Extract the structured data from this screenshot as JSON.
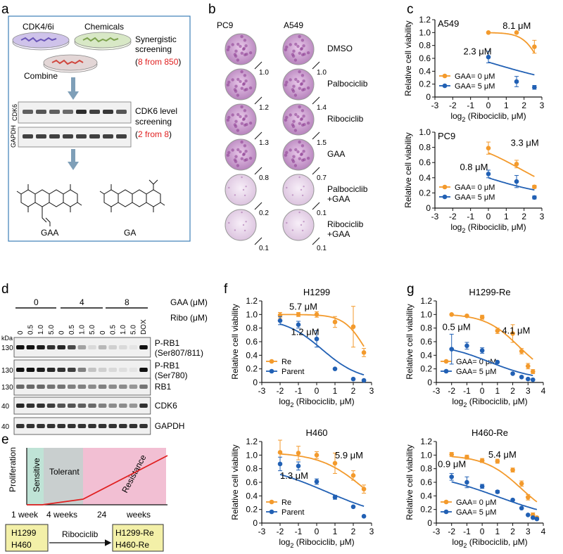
{
  "panel_letters": {
    "a": "a",
    "b": "b",
    "c": "c",
    "d": "d",
    "e": "e",
    "f": "f",
    "g": "g"
  },
  "colors": {
    "orange": "#f39a2c",
    "blue": "#2160b4",
    "panel_border": "#3c7fb7",
    "arrow": "#7f9fb8",
    "red": "#e02020",
    "sensitive": "#bfe3d6",
    "tolerant": "#c9cfcf",
    "resistance": "#f2bfd3",
    "yellow_box": "#f3f0a8"
  },
  "panel_a": {
    "dish1": "CDK4/6i",
    "dish2": "Chemicals",
    "combine": "Combine",
    "screen_title": "Synergistic",
    "screen_title2": "screening",
    "screen_count_open": "(",
    "screen_count": "8 from 850",
    "screen_count_close": ")",
    "blot_rows": [
      "CDK6",
      "GAPDH"
    ],
    "level_title": "CDK6 level",
    "level_title2": "screening",
    "level_count_open": "(",
    "level_count": "2 from 8",
    "level_count_close": ")",
    "compounds": [
      "GAA",
      "GA"
    ]
  },
  "panel_b": {
    "columns": [
      "PC9",
      "A549"
    ],
    "rows": [
      {
        "label": "DMSO",
        "pc9": "1.0",
        "a549": "1.0"
      },
      {
        "label": "Palbociclib",
        "pc9": "1.2",
        "a549": "1.4"
      },
      {
        "label": "Ribociclib",
        "pc9": "1.3",
        "a549": "1.5"
      },
      {
        "label": "GAA",
        "pc9": "0.8",
        "a549": "0.7"
      },
      {
        "label": "Palbociclib",
        "label2": "+GAA",
        "pc9": "0.2",
        "a549": "0.1"
      },
      {
        "label": "Ribociclib",
        "label2": "+GAA",
        "pc9": "0.1",
        "a549": "0.1"
      }
    ]
  },
  "panel_d": {
    "gaa_label": "GAA (μM)",
    "ribo_label": "Ribo (μM)",
    "gaa_groups": [
      "0",
      "4",
      "8"
    ],
    "ribo_doses": [
      "0",
      "0.5",
      "1.0",
      "5.0",
      "0",
      "0.5",
      "1.0",
      "5.0",
      "0",
      "0.5",
      "1.0",
      "5.0"
    ],
    "dox": "DOX",
    "kda": "kDa",
    "bands": [
      {
        "kda": "130",
        "label": "P-RB1",
        "label2": "(Ser807/811)"
      },
      {
        "kda": "130",
        "label": "P-RB1",
        "label2": "(Ser780)"
      },
      {
        "kda": "130",
        "label": "RB1"
      },
      {
        "kda": "40",
        "label": "CDK6"
      },
      {
        "kda": "40",
        "label": "GAPDH"
      }
    ]
  },
  "panel_e": {
    "ylabel": "Proliferation",
    "phases": [
      "Sensitive",
      "Tolerant",
      "Resistance"
    ],
    "times": [
      "1 week",
      "4 weeks",
      "24",
      "weeks"
    ],
    "box_left": [
      "H1299",
      "H460"
    ],
    "arrow_label": "Ribociclib",
    "box_right": [
      "H1299-Re",
      "H460-Re"
    ]
  },
  "chart_data": [
    {
      "id": "c-A549",
      "type": "scatter",
      "title": "A549",
      "ylabel": "Relative cell viability",
      "xlabel_pre": "log",
      "xlabel_sub": "2",
      "xlabel_post": " (Ribociclib, μM)",
      "xlim": [
        -3,
        3
      ],
      "ylim": [
        0,
        1.2
      ],
      "xticks": [
        "-3",
        "-2",
        "-1",
        "0",
        "1",
        "2",
        "3"
      ],
      "yticks": [
        "0",
        "0.2",
        "0.4",
        "0.6",
        "0.8",
        "1.0",
        "1.2"
      ],
      "series": [
        {
          "name": "GAA= 0 μM",
          "color": "orange",
          "x": [
            0,
            1.58,
            2.58
          ],
          "y": [
            1.0,
            1.0,
            0.78
          ],
          "err": [
            0,
            0,
            0.1
          ],
          "curve": {
            "top": 1.0,
            "bottom": 0.0,
            "ic50": 2.95,
            "hill": 3
          }
        },
        {
          "name": "GAA= 5 μM",
          "color": "blue",
          "x": [
            0,
            1.58,
            2.58
          ],
          "y": [
            0.62,
            0.24,
            0.15
          ],
          "err": [
            0.09,
            0.08,
            0.03
          ],
          "curve": {
            "top": 0.95,
            "bottom": 0.1,
            "ic50": 0.2,
            "hill": 0.55
          }
        }
      ],
      "annotations": [
        {
          "text": "8.1 μM",
          "x": 0.8,
          "y": 1.06
        },
        {
          "text": "2.3 μM",
          "x": -1.4,
          "y": 0.66
        }
      ],
      "legend": "bottom-left"
    },
    {
      "id": "c-PC9",
      "type": "scatter",
      "title": "PC9",
      "ylabel": "Relative cell viability",
      "xlabel_pre": "log",
      "xlabel_sub": "2",
      "xlabel_post": " (Ribociclib, μM)",
      "xlim": [
        -3,
        3
      ],
      "ylim": [
        0,
        1.0
      ],
      "xticks": [
        "-3",
        "-2",
        "-1",
        "0",
        "1",
        "2",
        "3"
      ],
      "yticks": [
        "0",
        "0.2",
        "0.4",
        "0.6",
        "0.8",
        "1.0"
      ],
      "series": [
        {
          "name": "GAA= 0 μM",
          "color": "orange",
          "x": [
            0,
            1.58,
            2.58
          ],
          "y": [
            0.79,
            0.58,
            0.28
          ],
          "err": [
            0.08,
            0.05,
            0.02
          ],
          "curve": {
            "top": 0.93,
            "bottom": 0.1,
            "ic50": 1.8,
            "hill": 0.9
          }
        },
        {
          "name": "GAA= 5 μM",
          "color": "blue",
          "x": [
            0,
            1.58,
            2.58
          ],
          "y": [
            0.45,
            0.35,
            0.14
          ],
          "err": [
            0.05,
            0.08,
            0.02
          ],
          "curve": {
            "top": 0.72,
            "bottom": 0.12,
            "ic50": -0.3,
            "hill": 0.7
          }
        }
      ],
      "annotations": [
        {
          "text": "3.3 μM",
          "x": 1.25,
          "y": 0.82
        },
        {
          "text": "0.8 μM",
          "x": -1.6,
          "y": 0.5
        }
      ],
      "legend": "bottom-left"
    },
    {
      "id": "f-H1299",
      "type": "scatter",
      "title": "H1299",
      "ylabel": "Relative cell viability",
      "xlabel_pre": "log",
      "xlabel_sub": "2",
      "xlabel_post": " (Ribociclib, μM)",
      "xlim": [
        -3,
        3
      ],
      "ylim": [
        0,
        1.2
      ],
      "xticks": [
        "-3",
        "-2",
        "-1",
        "0",
        "1",
        "2",
        "3"
      ],
      "yticks": [
        "0",
        "0.2",
        "0.4",
        "0.6",
        "0.8",
        "1.0",
        "1.2"
      ],
      "series": [
        {
          "name": "Re",
          "color": "orange",
          "x": [
            -2,
            -1,
            0,
            1,
            2,
            2.58
          ],
          "y": [
            0.99,
            1.0,
            1.0,
            0.89,
            0.82,
            0.44
          ],
          "err": [
            0.04,
            0.03,
            0.04,
            0.08,
            0.3,
            0.06
          ],
          "curve": {
            "top": 1.0,
            "bottom": 0.0,
            "ic50": 2.65,
            "hill": 2.5
          }
        },
        {
          "name": "Parent",
          "color": "blue",
          "x": [
            -2,
            -1,
            0,
            1,
            2,
            2.58
          ],
          "y": [
            0.91,
            0.85,
            0.64,
            0.2,
            0.05,
            0.03
          ],
          "err": [
            0.06,
            0.05,
            0.12,
            0,
            0,
            0
          ],
          "curve": {
            "top": 0.95,
            "bottom": 0.02,
            "ic50": 0.3,
            "hill": 1.4
          }
        }
      ],
      "annotations": [
        {
          "text": "5.7 μM",
          "x": -1.5,
          "y": 1.07
        },
        {
          "text": "1.2 μM",
          "x": -1.4,
          "y": 0.7
        }
      ],
      "legend": "bottom-left"
    },
    {
      "id": "g-H1299-Re",
      "type": "scatter",
      "title": "H1299-Re",
      "ylabel": "Relative cell viability",
      "xlabel_pre": "log",
      "xlabel_sub": "2",
      "xlabel_post": " (Ribociclib, μM)",
      "xlim": [
        -3,
        4
      ],
      "ylim": [
        0,
        1.2
      ],
      "xticks": [
        "-3",
        "-2",
        "-1",
        "0",
        "1",
        "2",
        "3",
        "4"
      ],
      "yticks": [
        "0",
        "0.2",
        "0.4",
        "0.6",
        "0.8",
        "1.0",
        "1.2"
      ],
      "series": [
        {
          "name": "GAA= 0 μM",
          "color": "orange",
          "x": [
            -2,
            -1,
            0,
            1,
            2,
            2.58,
            3,
            3.32
          ],
          "y": [
            1.0,
            0.98,
            0.96,
            0.76,
            0.72,
            0.46,
            0.24,
            0.16
          ],
          "err": [
            0,
            0,
            0.03,
            0.04,
            0.13,
            0.04,
            0.04,
            0.03
          ],
          "curve": {
            "top": 1.01,
            "bottom": 0.05,
            "ic50": 2.4,
            "hill": 1.3
          }
        },
        {
          "name": "GAA= 5 μM",
          "color": "blue",
          "x": [
            -2,
            -1,
            0,
            1,
            2,
            2.58,
            3,
            3.32
          ],
          "y": [
            0.49,
            0.54,
            0.47,
            0.3,
            0.13,
            0.08,
            0.05,
            0.04
          ],
          "err": [
            0.22,
            0.05,
            0.04,
            0,
            0,
            0,
            0,
            0
          ],
          "curve": {
            "top": 0.58,
            "bottom": 0.02,
            "ic50": 0.5,
            "hill": 0.9
          }
        }
      ],
      "annotations": [
        {
          "text": "0.5 μM",
          "x": -2.6,
          "y": 0.77
        },
        {
          "text": "4.1 μM",
          "x": 1.3,
          "y": 0.72
        }
      ],
      "legend": "bottom-left"
    },
    {
      "id": "f-H460",
      "type": "scatter",
      "title": "H460",
      "ylabel": "Relative cell viability",
      "xlabel_pre": "log",
      "xlabel_sub": "2",
      "xlabel_post": " (Ribociclib, μM)",
      "xlim": [
        -3,
        3
      ],
      "ylim": [
        0,
        1.2
      ],
      "xticks": [
        "-3",
        "-2",
        "-1",
        "0",
        "1",
        "2",
        "3"
      ],
      "yticks": [
        "0",
        "0.2",
        "0.4",
        "0.6",
        "0.8",
        "1.0",
        "1.2"
      ],
      "series": [
        {
          "name": "Re",
          "color": "orange",
          "x": [
            -2,
            -1,
            0,
            1,
            2,
            2.58
          ],
          "y": [
            1.04,
            1.03,
            1.0,
            0.88,
            0.7,
            0.5
          ],
          "err": [
            0.18,
            0.1,
            0.05,
            0.15,
            0.07,
            0.06
          ],
          "curve": {
            "top": 1.04,
            "bottom": 0.0,
            "ic50": 2.55,
            "hill": 1.2
          }
        },
        {
          "name": "Parent",
          "color": "blue",
          "x": [
            -2,
            -1,
            0,
            1,
            2,
            2.58
          ],
          "y": [
            0.87,
            0.84,
            0.61,
            0.38,
            0.24,
            0.1
          ],
          "err": [
            0.1,
            0.06,
            0.04,
            0.03,
            0,
            0
          ],
          "curve": {
            "top": 0.9,
            "bottom": 0.02,
            "ic50": 0.55,
            "hill": 0.75
          }
        }
      ],
      "annotations": [
        {
          "text": "5.9 μM",
          "x": 1.0,
          "y": 0.95
        },
        {
          "text": "1.3 μM",
          "x": -2.0,
          "y": 0.65
        }
      ],
      "legend": "bottom-left"
    },
    {
      "id": "g-H460-Re",
      "type": "scatter",
      "title": "H460-Re",
      "ylabel": "Relative cell viability",
      "xlabel_pre": "log",
      "xlabel_sub": "2",
      "xlabel_post": " (Ribociclib, μM)",
      "xlim": [
        -3,
        4
      ],
      "ylim": [
        0,
        1.2
      ],
      "xticks": [
        "-3",
        "-2",
        "-1",
        "0",
        "1",
        "2",
        "3",
        "4"
      ],
      "yticks": [
        "0",
        "0.2",
        "0.4",
        "0.6",
        "0.8",
        "1.0",
        "1.2"
      ],
      "series": [
        {
          "name": "GAA= 0 μM",
          "color": "orange",
          "x": [
            -2,
            -1,
            0,
            1,
            2,
            2.58,
            3,
            3.32,
            3.58
          ],
          "y": [
            1.01,
            0.97,
            0.92,
            0.91,
            0.78,
            0.58,
            0.38,
            0.12,
            0.08
          ],
          "err": [
            0.03,
            0.03,
            0.03,
            0.03,
            0.03,
            0.04,
            0.04,
            0.03,
            0
          ],
          "curve": {
            "top": 1.0,
            "bottom": 0.02,
            "ic50": 2.55,
            "hill": 1.2
          }
        },
        {
          "name": "GAA= 5 μM",
          "color": "blue",
          "x": [
            -2,
            -1,
            0,
            1,
            2,
            2.58,
            3,
            3.32,
            3.58
          ],
          "y": [
            0.68,
            0.6,
            0.54,
            0.46,
            0.34,
            0.22,
            0.12,
            0.08,
            0.06
          ],
          "err": [
            0.05,
            0.08,
            0.03,
            0.02,
            0,
            0,
            0,
            0,
            0
          ],
          "curve": {
            "top": 0.78,
            "bottom": 0.0,
            "ic50": 1.0,
            "hill": 0.6
          }
        }
      ],
      "annotations": [
        {
          "text": "0.9 μM",
          "x": -2.9,
          "y": 0.82
        },
        {
          "text": "5.4 μM",
          "x": 0.4,
          "y": 0.96
        }
      ],
      "legend": "bottom-left"
    }
  ]
}
